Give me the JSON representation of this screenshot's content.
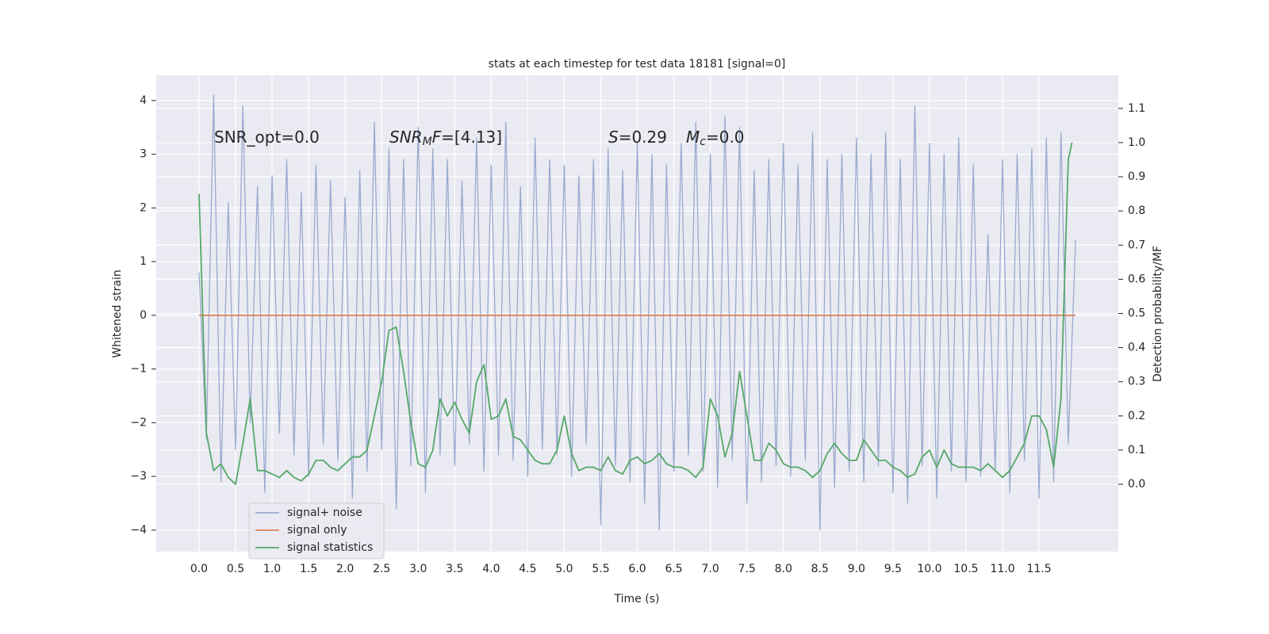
{
  "chart_data": {
    "type": "line",
    "title": "stats at each timestep for test data 18181 [signal=0]",
    "xlabel": "Time (s)",
    "ylabel": "Whitened strain",
    "y2label": "Detection probability/MF",
    "annotations": [
      [
        "SNR_opt=0.0"
      ],
      [
        "SNR",
        "M",
        "F",
        "=[4.13]"
      ],
      [
        "S",
        "=0.29",
        "M",
        "c",
        "=0.0"
      ]
    ],
    "xlim": [
      -0.586,
      12.585
    ],
    "ylim": [
      -4.4,
      4.47
    ],
    "y2lim": [
      -0.197,
      1.197
    ],
    "xticks": [
      {
        "value": 0,
        "label": "0.0"
      },
      0.5,
      {
        "value": 1,
        "label": "1.0"
      },
      1.5,
      {
        "value": 2,
        "label": "2.0"
      },
      2.5,
      {
        "value": 3,
        "label": "3.0"
      },
      3.5,
      {
        "value": 4,
        "label": "4.0"
      },
      4.5,
      {
        "value": 5,
        "label": "5.0"
      },
      5.5,
      {
        "value": 6,
        "label": "6.0"
      },
      6.5,
      {
        "value": 7,
        "label": "7.0"
      },
      7.5,
      {
        "value": 8,
        "label": "8.0"
      },
      8.5,
      {
        "value": 9,
        "label": "9.0"
      },
      9.5,
      {
        "value": 10,
        "label": "10.0"
      },
      10.5,
      {
        "value": 11,
        "label": "11.0"
      },
      11.5
    ],
    "yticks": [
      {
        "value": -4,
        "label": "−4"
      },
      {
        "value": -3,
        "label": "−3"
      },
      {
        "value": -2,
        "label": "−2"
      },
      {
        "value": -1,
        "label": "−1"
      },
      0,
      1,
      2,
      3,
      4
    ],
    "y2ticks": [
      {
        "value": 0,
        "label": "0.0"
      },
      0.1,
      0.2,
      0.3,
      0.4,
      0.5,
      0.6,
      0.7,
      0.8,
      0.9,
      {
        "value": 1,
        "label": "1.0"
      },
      1.1
    ],
    "grid": true,
    "legend": "lower left",
    "series": [
      {
        "name": "signal+ noise",
        "color": "#9aaacf",
        "axis": "y",
        "x": [
          0.0,
          0.1,
          0.2,
          0.3,
          0.4,
          0.5,
          0.6,
          0.7,
          0.8,
          0.9,
          1.0,
          1.1,
          1.2,
          1.3,
          1.4,
          1.5,
          1.6,
          1.7,
          1.8,
          1.9,
          2.0,
          2.1,
          2.2,
          2.3,
          2.4,
          2.5,
          2.6,
          2.7,
          2.8,
          2.9,
          3.0,
          3.1,
          3.2,
          3.3,
          3.4,
          3.5,
          3.6,
          3.7,
          3.8,
          3.9,
          4.0,
          4.1,
          4.2,
          4.3,
          4.4,
          4.5,
          4.6,
          4.7,
          4.8,
          4.9,
          5.0,
          5.1,
          5.2,
          5.3,
          5.4,
          5.5,
          5.6,
          5.7,
          5.8,
          5.9,
          6.0,
          6.1,
          6.2,
          6.3,
          6.4,
          6.5,
          6.6,
          6.7,
          6.8,
          6.9,
          7.0,
          7.1,
          7.2,
          7.3,
          7.4,
          7.5,
          7.6,
          7.7,
          7.8,
          7.9,
          8.0,
          8.1,
          8.2,
          8.3,
          8.4,
          8.5,
          8.6,
          8.7,
          8.8,
          8.9,
          9.0,
          9.1,
          9.2,
          9.3,
          9.4,
          9.5,
          9.6,
          9.7,
          9.8,
          9.9,
          10.0,
          10.1,
          10.2,
          10.3,
          10.4,
          10.5,
          10.6,
          10.7,
          10.8,
          10.9,
          11.0,
          11.1,
          11.2,
          11.3,
          11.4,
          11.5,
          11.6,
          11.7,
          11.8,
          11.9,
          12.0
        ],
        "values": [
          0.8,
          -2.3,
          4.1,
          -3.1,
          2.1,
          -2.5,
          3.9,
          -2.0,
          2.4,
          -3.3,
          2.6,
          -2.2,
          2.9,
          -2.6,
          2.3,
          -3.0,
          2.8,
          -2.4,
          2.5,
          -2.7,
          2.2,
          -3.4,
          2.7,
          -2.9,
          3.6,
          -2.5,
          3.1,
          -3.6,
          2.9,
          -2.8,
          3.5,
          -3.3,
          3.1,
          -2.6,
          2.9,
          -2.8,
          2.5,
          -2.4,
          3.3,
          -2.9,
          2.8,
          -2.6,
          3.6,
          -2.7,
          2.4,
          -3.0,
          3.3,
          -2.5,
          2.9,
          -2.6,
          2.8,
          -3.0,
          2.6,
          -2.4,
          2.9,
          -3.9,
          3.1,
          -2.8,
          2.7,
          -3.1,
          3.2,
          -3.5,
          3.0,
          -4.0,
          2.8,
          -2.9,
          3.2,
          -2.6,
          3.6,
          -2.9,
          3.0,
          -3.2,
          3.7,
          -2.7,
          3.5,
          -3.5,
          2.7,
          -3.1,
          2.9,
          -2.8,
          3.2,
          -3.0,
          2.8,
          -2.7,
          3.4,
          -4.0,
          2.9,
          -3.2,
          3.0,
          -2.9,
          3.3,
          -3.1,
          3.0,
          -2.8,
          3.4,
          -3.3,
          2.9,
          -3.5,
          3.9,
          -2.8,
          3.2,
          -3.4,
          3.0,
          -2.9,
          3.3,
          -3.1,
          2.8,
          -3.0,
          1.5,
          -2.9,
          2.9,
          -3.3,
          3.0,
          -2.7,
          3.1,
          -3.4,
          3.3,
          -3.1,
          3.4,
          -2.4,
          1.4
        ]
      },
      {
        "name": "signal only",
        "color": "#dd8452",
        "axis": "y",
        "x": [
          0.0,
          12.0
        ],
        "values": [
          0,
          0
        ]
      },
      {
        "name": "signal statistics",
        "color": "#55a868",
        "axis": "y2",
        "x": [
          0.0,
          0.1,
          0.2,
          0.3,
          0.4,
          0.5,
          0.6,
          0.7,
          0.8,
          0.9,
          1.0,
          1.1,
          1.2,
          1.3,
          1.4,
          1.5,
          1.6,
          1.7,
          1.8,
          1.9,
          2.0,
          2.1,
          2.2,
          2.3,
          2.4,
          2.5,
          2.6,
          2.7,
          2.8,
          2.9,
          3.0,
          3.1,
          3.2,
          3.3,
          3.4,
          3.5,
          3.6,
          3.7,
          3.8,
          3.9,
          4.0,
          4.1,
          4.2,
          4.3,
          4.4,
          4.5,
          4.6,
          4.7,
          4.8,
          4.9,
          5.0,
          5.1,
          5.2,
          5.3,
          5.4,
          5.5,
          5.6,
          5.7,
          5.8,
          5.9,
          6.0,
          6.1,
          6.2,
          6.3,
          6.4,
          6.5,
          6.6,
          6.7,
          6.8,
          6.9,
          7.0,
          7.1,
          7.2,
          7.3,
          7.4,
          7.5,
          7.6,
          7.7,
          7.8,
          7.9,
          8.0,
          8.1,
          8.2,
          8.3,
          8.4,
          8.5,
          8.6,
          8.7,
          8.8,
          8.9,
          9.0,
          9.1,
          9.2,
          9.3,
          9.4,
          9.5,
          9.6,
          9.7,
          9.8,
          9.9,
          10.0,
          10.1,
          10.2,
          10.3,
          10.4,
          10.5,
          10.6,
          10.7,
          10.8,
          10.9,
          11.0,
          11.1,
          11.2,
          11.3,
          11.4,
          11.5,
          11.6,
          11.7,
          11.8,
          11.9,
          11.95
        ],
        "values": [
          0.85,
          0.15,
          0.04,
          0.06,
          0.02,
          0.0,
          0.12,
          0.25,
          0.04,
          0.04,
          0.03,
          0.02,
          0.04,
          0.02,
          0.01,
          0.03,
          0.07,
          0.07,
          0.05,
          0.04,
          0.06,
          0.08,
          0.08,
          0.1,
          0.2,
          0.3,
          0.45,
          0.46,
          0.33,
          0.18,
          0.06,
          0.05,
          0.1,
          0.25,
          0.2,
          0.24,
          0.19,
          0.15,
          0.3,
          0.35,
          0.19,
          0.2,
          0.25,
          0.14,
          0.13,
          0.1,
          0.07,
          0.06,
          0.06,
          0.1,
          0.2,
          0.09,
          0.04,
          0.05,
          0.05,
          0.04,
          0.08,
          0.04,
          0.03,
          0.07,
          0.08,
          0.06,
          0.07,
          0.09,
          0.06,
          0.05,
          0.05,
          0.04,
          0.02,
          0.05,
          0.25,
          0.2,
          0.08,
          0.15,
          0.33,
          0.2,
          0.07,
          0.07,
          0.12,
          0.1,
          0.06,
          0.05,
          0.05,
          0.04,
          0.02,
          0.04,
          0.09,
          0.12,
          0.09,
          0.07,
          0.07,
          0.13,
          0.1,
          0.07,
          0.07,
          0.05,
          0.04,
          0.02,
          0.03,
          0.08,
          0.1,
          0.05,
          0.1,
          0.06,
          0.05,
          0.05,
          0.05,
          0.04,
          0.06,
          0.04,
          0.02,
          0.04,
          0.08,
          0.12,
          0.2,
          0.2,
          0.16,
          0.05,
          0.25,
          0.95,
          1.0
        ]
      }
    ]
  }
}
